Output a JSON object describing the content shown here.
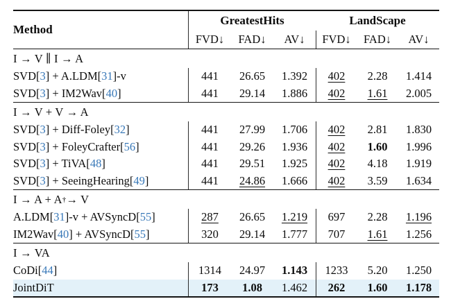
{
  "table": {
    "colors": {
      "cite": "#3878b8",
      "highlight": "#e3f1f9",
      "rule": "#141414",
      "text": "#0b0b0b"
    },
    "header": {
      "method_label": "Method",
      "group_labels": [
        "GreatestHits",
        "LandScape"
      ],
      "metric_labels": [
        "FVD↓",
        "FAD↓",
        "AV↓",
        "FVD↓",
        "FAD↓",
        "AV↓"
      ]
    },
    "sections": [
      {
        "label": [
          {
            "t": "I → V ∥ I → A"
          }
        ],
        "rows": [
          {
            "method": [
              {
                "t": "SVD["
              },
              {
                "t": "3",
                "c": 1
              },
              {
                "t": "] + A.LDM["
              },
              {
                "t": "31",
                "c": 1
              },
              {
                "t": "]-v"
              }
            ],
            "cells": [
              {
                "v": "441"
              },
              {
                "v": "26.65"
              },
              {
                "v": "1.392"
              },
              {
                "v": "402",
                "u": 1
              },
              {
                "v": "2.28"
              },
              {
                "v": "1.414"
              }
            ]
          },
          {
            "method": [
              {
                "t": "SVD["
              },
              {
                "t": "3",
                "c": 1
              },
              {
                "t": "] + IM2Wav["
              },
              {
                "t": "40",
                "c": 1
              },
              {
                "t": "]"
              }
            ],
            "cells": [
              {
                "v": "441"
              },
              {
                "v": "29.14"
              },
              {
                "v": "1.886"
              },
              {
                "v": "402",
                "u": 1
              },
              {
                "v": "1.61",
                "u": 1
              },
              {
                "v": "2.005"
              }
            ]
          }
        ]
      },
      {
        "label": [
          {
            "t": "I → V + V → A"
          }
        ],
        "rows": [
          {
            "method": [
              {
                "t": "SVD["
              },
              {
                "t": "3",
                "c": 1
              },
              {
                "t": "] + Diff-Foley["
              },
              {
                "t": "32",
                "c": 1
              },
              {
                "t": "]"
              }
            ],
            "cells": [
              {
                "v": "441"
              },
              {
                "v": "27.99"
              },
              {
                "v": "1.706"
              },
              {
                "v": "402",
                "u": 1
              },
              {
                "v": "2.81"
              },
              {
                "v": "1.830"
              }
            ]
          },
          {
            "method": [
              {
                "t": "SVD["
              },
              {
                "t": "3",
                "c": 1
              },
              {
                "t": "] + FoleyCrafter["
              },
              {
                "t": "56",
                "c": 1
              },
              {
                "t": "]"
              }
            ],
            "cells": [
              {
                "v": "441"
              },
              {
                "v": "29.26"
              },
              {
                "v": "1.936"
              },
              {
                "v": "402",
                "u": 1
              },
              {
                "v": "1.60",
                "b": 1
              },
              {
                "v": "1.996"
              }
            ]
          },
          {
            "method": [
              {
                "t": "SVD["
              },
              {
                "t": "3",
                "c": 1
              },
              {
                "t": "] + TiVA["
              },
              {
                "t": "48",
                "c": 1
              },
              {
                "t": "]"
              }
            ],
            "cells": [
              {
                "v": "441"
              },
              {
                "v": "29.51"
              },
              {
                "v": "1.925"
              },
              {
                "v": "402",
                "u": 1
              },
              {
                "v": "4.18"
              },
              {
                "v": "1.919"
              }
            ]
          },
          {
            "method": [
              {
                "t": "SVD["
              },
              {
                "t": "3",
                "c": 1
              },
              {
                "t": "] + SeeingHearing["
              },
              {
                "t": "49",
                "c": 1
              },
              {
                "t": "]"
              }
            ],
            "cells": [
              {
                "v": "441"
              },
              {
                "v": "24.86",
                "u": 1
              },
              {
                "v": "1.666"
              },
              {
                "v": "402",
                "u": 1
              },
              {
                "v": "3.59"
              },
              {
                "v": "1.634"
              }
            ]
          }
        ]
      },
      {
        "label": [
          {
            "t": "I → A + A"
          },
          {
            "t": "†",
            "sup": 1
          },
          {
            "t": " → V"
          }
        ],
        "rows": [
          {
            "method": [
              {
                "t": "A.LDM["
              },
              {
                "t": "31",
                "c": 1
              },
              {
                "t": "]-v + AVSyncD["
              },
              {
                "t": "55",
                "c": 1
              },
              {
                "t": "]"
              }
            ],
            "cells": [
              {
                "v": "287",
                "u": 1
              },
              {
                "v": "26.65"
              },
              {
                "v": "1.219",
                "u": 1
              },
              {
                "v": "697"
              },
              {
                "v": "2.28"
              },
              {
                "v": "1.196",
                "u": 1
              }
            ]
          },
          {
            "method": [
              {
                "t": "IM2Wav["
              },
              {
                "t": "40",
                "c": 1
              },
              {
                "t": "] + AVSyncD["
              },
              {
                "t": "55",
                "c": 1
              },
              {
                "t": "]"
              }
            ],
            "cells": [
              {
                "v": "320"
              },
              {
                "v": "29.14"
              },
              {
                "v": "1.777"
              },
              {
                "v": "707"
              },
              {
                "v": "1.61",
                "u": 1
              },
              {
                "v": "1.256"
              }
            ]
          }
        ]
      },
      {
        "label": [
          {
            "t": "I → VA"
          }
        ],
        "rows": [
          {
            "method": [
              {
                "t": "CoDi["
              },
              {
                "t": "44",
                "c": 1
              },
              {
                "t": "]"
              }
            ],
            "cells": [
              {
                "v": "1314"
              },
              {
                "v": "24.97"
              },
              {
                "v": "1.143",
                "b": 1
              },
              {
                "v": "1233"
              },
              {
                "v": "5.20"
              },
              {
                "v": "1.250"
              }
            ]
          },
          {
            "method": [
              {
                "t": "JointDiT"
              }
            ],
            "highlight": 1,
            "cells": [
              {
                "v": "173",
                "b": 1
              },
              {
                "v": "1.08",
                "b": 1
              },
              {
                "v": "1.462"
              },
              {
                "v": "262",
                "b": 1
              },
              {
                "v": "1.60",
                "b": 1
              },
              {
                "v": "1.178",
                "b": 1
              }
            ]
          }
        ]
      }
    ]
  }
}
